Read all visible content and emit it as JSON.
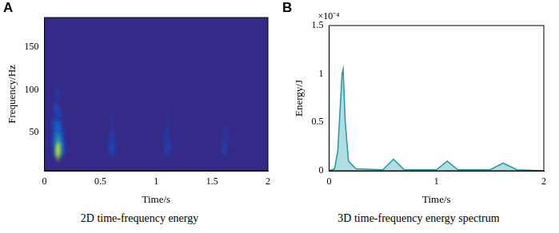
{
  "chart_data": [
    {
      "type": "heatmap",
      "label": "A",
      "caption": "2D time-frequency energy",
      "x_label": "Time/s",
      "y_label": "Frequency/Hz",
      "xlim": [
        0,
        2
      ],
      "xticks": [
        0,
        0.5,
        1,
        1.5,
        2
      ],
      "ylim": [
        5,
        185
      ],
      "yticks": [
        50,
        100,
        150
      ],
      "color_range": [
        0,
        0.0001
      ],
      "cells": [
        [
          0.08,
          40,
          1.5e-05
        ],
        [
          0.08,
          60,
          1e-05
        ],
        [
          0.1,
          30,
          4e-05
        ],
        [
          0.1,
          45,
          3e-05
        ],
        [
          0.1,
          60,
          2e-05
        ],
        [
          0.1,
          80,
          1.2e-05
        ],
        [
          0.1,
          100,
          6e-06
        ],
        [
          0.12,
          25,
          7e-05
        ],
        [
          0.12,
          30,
          0.0001
        ],
        [
          0.12,
          40,
          6e-05
        ],
        [
          0.12,
          55,
          3e-05
        ],
        [
          0.12,
          75,
          1.5e-05
        ],
        [
          0.12,
          95,
          8e-06
        ],
        [
          0.14,
          30,
          6e-05
        ],
        [
          0.14,
          40,
          4e-05
        ],
        [
          0.14,
          55,
          2e-05
        ],
        [
          0.14,
          70,
          1e-05
        ],
        [
          0.16,
          30,
          2.5e-05
        ],
        [
          0.16,
          45,
          1.5e-05
        ],
        [
          0.18,
          35,
          8e-06
        ],
        [
          0.58,
          35,
          8e-06
        ],
        [
          0.6,
          30,
          1.5e-05
        ],
        [
          0.6,
          45,
          1.2e-05
        ],
        [
          0.6,
          65,
          6e-06
        ],
        [
          0.62,
          35,
          1e-05
        ],
        [
          0.62,
          55,
          5e-06
        ],
        [
          1.08,
          40,
          7e-06
        ],
        [
          1.1,
          30,
          1.4e-05
        ],
        [
          1.1,
          50,
          1e-05
        ],
        [
          1.1,
          70,
          5e-06
        ],
        [
          1.12,
          35,
          9e-06
        ],
        [
          1.6,
          35,
          8e-06
        ],
        [
          1.62,
          30,
          1.3e-05
        ],
        [
          1.62,
          50,
          8e-06
        ],
        [
          1.64,
          40,
          6e-06
        ]
      ]
    },
    {
      "type": "line",
      "label": "B",
      "caption": "3D time-frequency energy spectrum",
      "x_label": "Time/s",
      "y_label": "Energy/J",
      "annotation": "×10⁻⁴",
      "color": "#1f9aa8",
      "x": [
        0,
        0.05,
        0.08,
        0.1,
        0.12,
        0.13,
        0.15,
        0.18,
        0.25,
        0.5,
        0.6,
        0.7,
        1,
        1.1,
        1.2,
        1.5,
        1.62,
        1.75,
        2
      ],
      "values": [
        0,
        2e-06,
        2e-05,
        6e-05,
        0.0001,
        0.000105,
        5e-05,
        1e-05,
        2e-06,
        1e-06,
        1.2e-05,
        1e-06,
        1e-06,
        1e-05,
        1e-06,
        1e-06,
        8e-06,
        1e-06,
        0
      ],
      "xlim": [
        0,
        2
      ],
      "xticks": [
        0,
        1,
        2
      ],
      "ylim": [
        0,
        0.00015
      ],
      "yticks": [
        0,
        {
          "value": 5e-05,
          "label": "0.5"
        },
        {
          "value": 0.0001,
          "label": "1"
        },
        {
          "value": 0.00015,
          "label": "1.5"
        }
      ]
    }
  ]
}
